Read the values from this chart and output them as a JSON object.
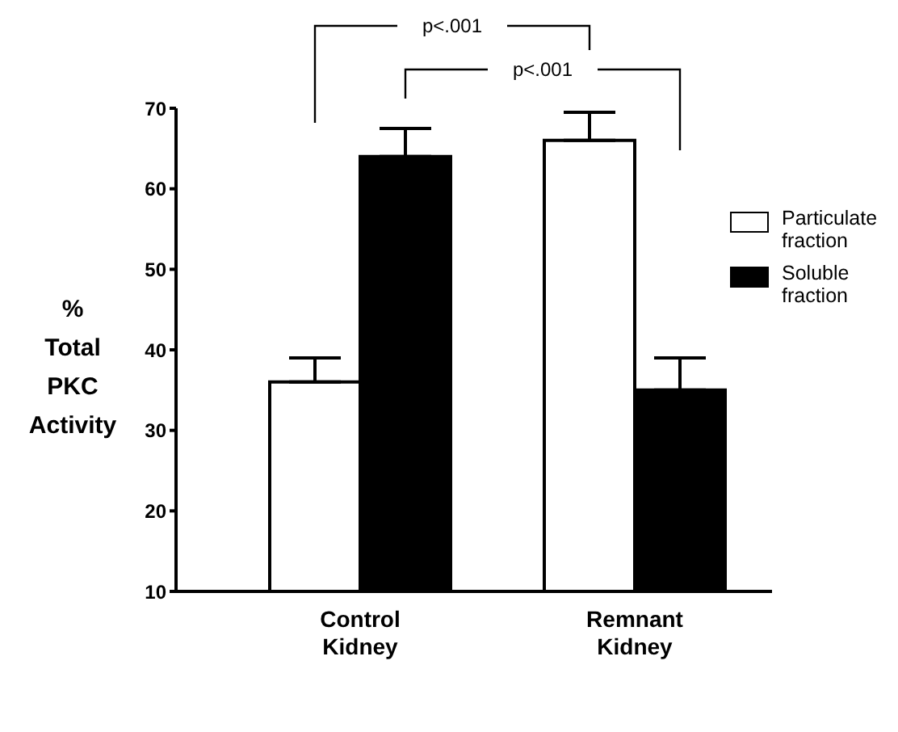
{
  "chart_data": {
    "type": "bar",
    "ylabel": "% Total PKC Activity",
    "categories": [
      "Control Kidney",
      "Remnant Kidney"
    ],
    "series": [
      {
        "name": "Particulate fraction",
        "color": "#ffffff",
        "values": [
          36,
          66
        ],
        "errors": [
          [
            36,
            39
          ],
          [
            66,
            69.5
          ]
        ]
      },
      {
        "name": "Soluble fraction",
        "color": "#000000",
        "values": [
          64,
          35
        ],
        "errors": [
          [
            64,
            67.5
          ],
          [
            35,
            39
          ]
        ]
      }
    ],
    "ylim": [
      10,
      70
    ],
    "yticks": [
      10,
      20,
      30,
      40,
      50,
      60,
      70
    ],
    "grid": false,
    "legend": "right",
    "annotations": [
      "p<.001",
      "p<.001"
    ]
  }
}
